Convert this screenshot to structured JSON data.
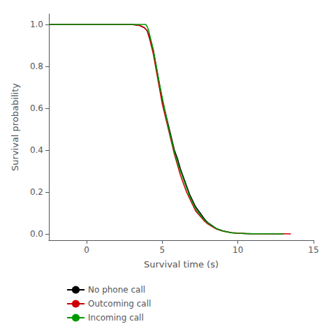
{
  "chart_data": {
    "type": "line",
    "xlabel": "Survival time (s)",
    "ylabel": "Survival probability",
    "xlim": [
      -2.5,
      15
    ],
    "ylim": [
      -0.03,
      1.05
    ],
    "xticks": [
      0,
      5,
      10,
      15
    ],
    "yticks": [
      {
        "value": 0.0,
        "label": "0.0"
      },
      0.2,
      0.4,
      0.6,
      0.8,
      {
        "value": 1.0,
        "label": "1.0"
      }
    ],
    "grid": false,
    "legend": "lower left",
    "series": [
      {
        "name": "No phone call",
        "color": "#000000",
        "x": [
          -2.5,
          3.0,
          3.5,
          3.8,
          4.0,
          4.2,
          4.4,
          4.6,
          4.8,
          5.0,
          5.2,
          5.4,
          5.6,
          5.8,
          6.0,
          6.2,
          6.4,
          6.6,
          6.8,
          7.0,
          7.2,
          7.5,
          7.8,
          8.0,
          8.3,
          8.6,
          9.0,
          9.3,
          9.6,
          10.0,
          10.5,
          11.0,
          12.0,
          13.0
        ],
        "values": [
          1.0,
          1.0,
          0.995,
          0.985,
          0.97,
          0.93,
          0.88,
          0.8,
          0.72,
          0.64,
          0.58,
          0.52,
          0.46,
          0.4,
          0.36,
          0.31,
          0.27,
          0.23,
          0.19,
          0.16,
          0.13,
          0.1,
          0.07,
          0.055,
          0.04,
          0.025,
          0.015,
          0.01,
          0.006,
          0.003,
          0.002,
          0.001,
          0.0005,
          0.0
        ]
      },
      {
        "name": "Outcoming call",
        "color": "#cc0000",
        "x": [
          -2.5,
          3.0,
          3.5,
          3.8,
          4.0,
          4.2,
          4.4,
          4.6,
          4.8,
          5.0,
          5.2,
          5.4,
          5.6,
          5.8,
          6.0,
          6.2,
          6.4,
          6.6,
          6.8,
          7.0,
          7.2,
          7.5,
          7.8,
          8.0,
          8.3,
          8.6,
          9.0,
          9.3,
          9.6,
          10.0,
          10.5,
          11.0,
          12.0,
          13.0,
          13.5
        ],
        "values": [
          1.0,
          1.0,
          0.995,
          0.985,
          0.97,
          0.92,
          0.86,
          0.78,
          0.7,
          0.62,
          0.56,
          0.5,
          0.44,
          0.38,
          0.33,
          0.28,
          0.24,
          0.2,
          0.17,
          0.14,
          0.11,
          0.085,
          0.06,
          0.048,
          0.035,
          0.022,
          0.013,
          0.009,
          0.006,
          0.004,
          0.002,
          0.001,
          0.001,
          0.0005,
          0.0
        ]
      },
      {
        "name": "Incoming call",
        "color": "#009900",
        "x": [
          -2.5,
          3.5,
          3.9,
          4.0,
          4.1,
          4.2,
          4.4,
          4.6,
          4.8,
          5.0,
          5.2,
          5.4,
          5.6,
          5.8,
          6.0,
          6.2,
          6.4,
          6.6,
          6.8,
          7.0,
          7.2,
          7.5,
          7.8,
          8.0,
          8.3,
          8.6,
          9.0,
          9.3,
          9.6,
          10.0,
          10.5,
          11.0,
          12.0,
          13.0
        ],
        "values": [
          1.0,
          1.0,
          1.0,
          0.99,
          0.97,
          0.94,
          0.88,
          0.8,
          0.72,
          0.65,
          0.58,
          0.51,
          0.45,
          0.39,
          0.34,
          0.3,
          0.26,
          0.22,
          0.18,
          0.15,
          0.12,
          0.09,
          0.065,
          0.052,
          0.038,
          0.025,
          0.014,
          0.009,
          0.005,
          0.003,
          0.002,
          0.001,
          0.0005,
          0.0
        ]
      }
    ]
  }
}
